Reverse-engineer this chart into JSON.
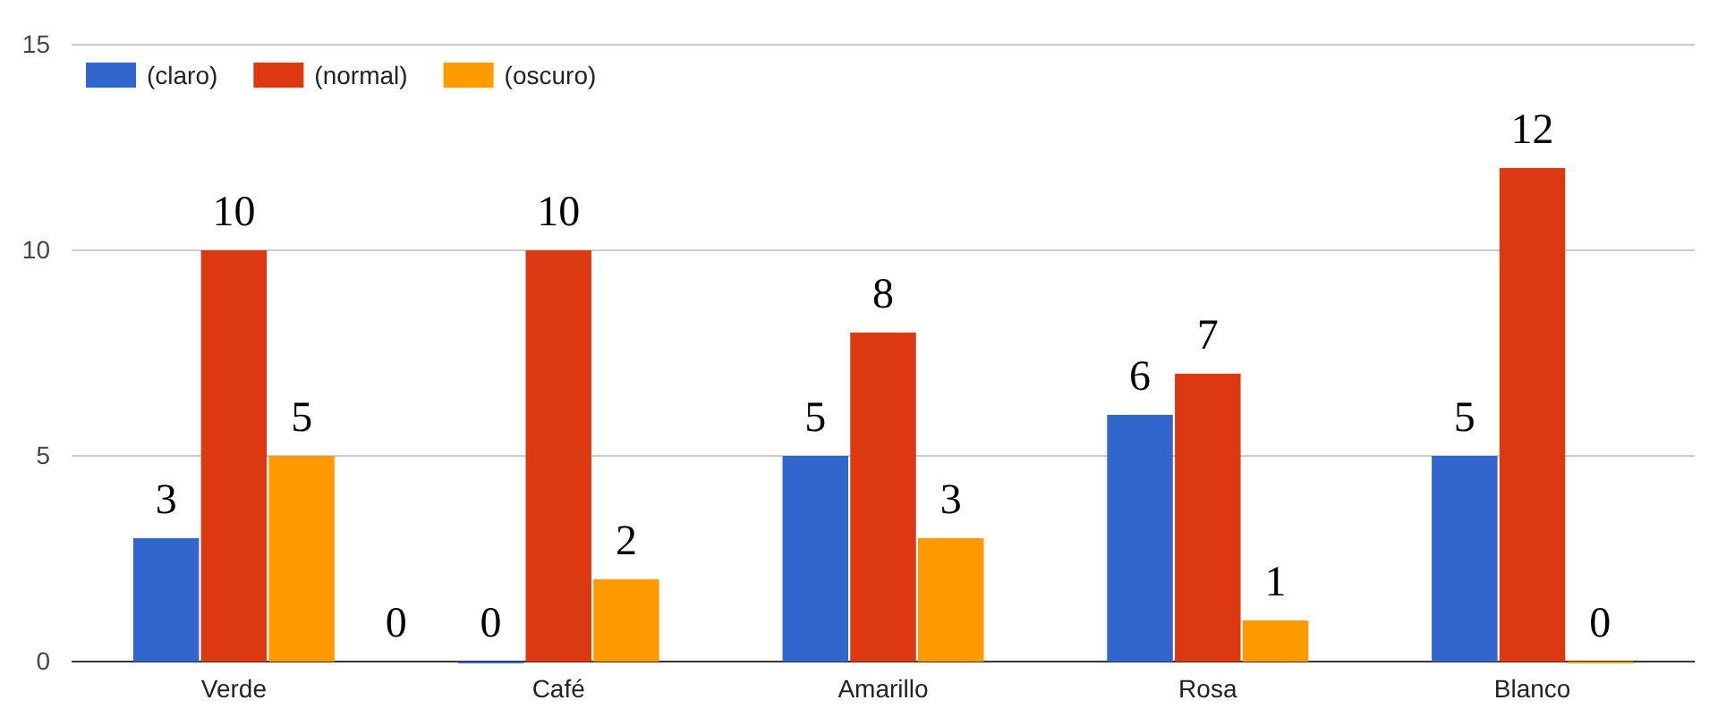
{
  "chart_data": {
    "type": "bar",
    "categories": [
      "Verde",
      "Café",
      "Amarillo",
      "Rosa",
      "Blanco"
    ],
    "series": [
      {
        "name": "(claro)",
        "color": "#3366cc",
        "values": [
          3,
          0,
          5,
          6,
          5
        ]
      },
      {
        "name": "(normal)",
        "color": "#dc3912",
        "values": [
          10,
          10,
          8,
          7,
          12
        ]
      },
      {
        "name": "(oscuro)",
        "color": "#ff9900",
        "values": [
          5,
          2,
          3,
          1,
          0
        ]
      }
    ],
    "ylim": [
      0,
      15
    ],
    "yticks": [
      0,
      5,
      10,
      15
    ],
    "grid": "y",
    "legend": "top left",
    "data_labels": true,
    "annotations": [
      "0"
    ]
  }
}
